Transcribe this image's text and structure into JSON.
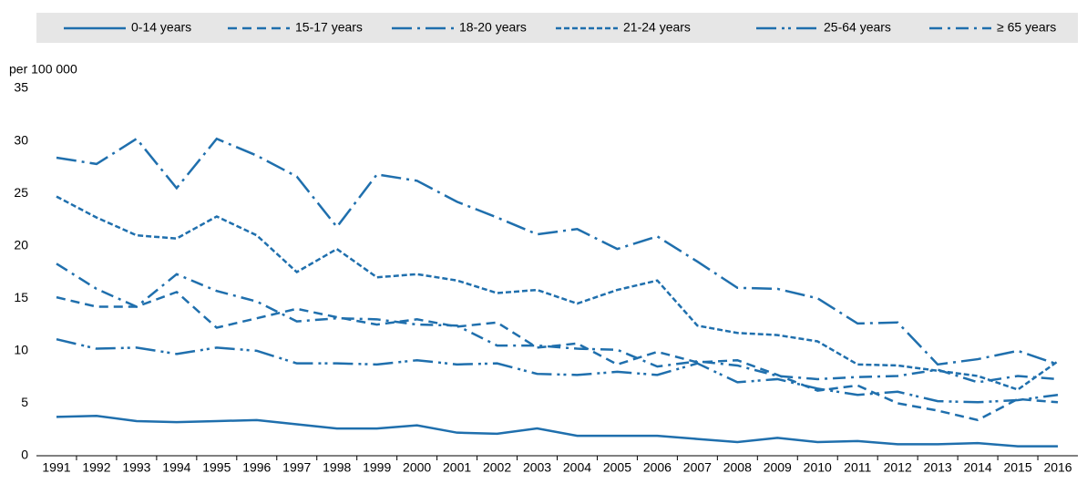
{
  "chart_data": {
    "type": "line",
    "y_label": "per 100 000",
    "categories": [
      "1991",
      "1992",
      "1993",
      "1994",
      "1995",
      "1996",
      "1997",
      "1998",
      "1999",
      "2000",
      "2001",
      "2002",
      "2003",
      "2004",
      "2005",
      "2006",
      "2007",
      "2008",
      "2009",
      "2010",
      "2011",
      "2012",
      "2013",
      "2014",
      "2015",
      "2016"
    ],
    "series": [
      {
        "name": "0-14 years",
        "color": "#1f6fad",
        "values": [
          3.7,
          3.8,
          3.3,
          3.2,
          3.3,
          3.4,
          3.0,
          2.6,
          2.6,
          2.9,
          2.2,
          2.1,
          2.6,
          1.9,
          1.9,
          1.9,
          1.6,
          1.3,
          1.7,
          1.3,
          1.4,
          1.1,
          1.1,
          1.2,
          0.9,
          0.9
        ]
      },
      {
        "name": "15-17 years",
        "color": "#1f6fad",
        "values": [
          15.1,
          14.2,
          14.2,
          15.6,
          12.2,
          13.1,
          14.0,
          13.2,
          12.5,
          13.0,
          12.3,
          12.7,
          10.3,
          10.7,
          8.7,
          9.9,
          8.9,
          9.1,
          7.7,
          6.2,
          6.7,
          5.0,
          4.3,
          3.4,
          5.4,
          5.1
        ]
      },
      {
        "name": "18-20 years",
        "color": "#1f6fad",
        "values": [
          28.4,
          27.8,
          30.2,
          25.5,
          30.2,
          28.6,
          26.6,
          21.8,
          26.8,
          26.2,
          24.2,
          22.7,
          21.1,
          21.6,
          19.7,
          20.9,
          18.5,
          16.0,
          15.9,
          15.0,
          12.6,
          12.7,
          8.7,
          9.2,
          10.0,
          8.7
        ]
      },
      {
        "name": "21-24 years",
        "color": "#1f6fad",
        "values": [
          24.7,
          22.7,
          21.0,
          20.7,
          22.8,
          21.0,
          17.5,
          19.7,
          17.0,
          17.3,
          16.7,
          15.5,
          15.8,
          14.5,
          15.8,
          16.7,
          12.4,
          11.7,
          11.5,
          10.9,
          8.7,
          8.6,
          8.1,
          7.6,
          6.3,
          9.0
        ]
      },
      {
        "name": "25-64 years",
        "color": "#1f6fad",
        "values": [
          11.1,
          10.2,
          10.3,
          9.7,
          10.3,
          10.0,
          8.8,
          8.8,
          8.7,
          9.1,
          8.7,
          8.8,
          7.8,
          7.7,
          8.0,
          7.7,
          8.8,
          7.0,
          7.3,
          6.4,
          5.8,
          6.1,
          5.2,
          5.1,
          5.3,
          5.8
        ]
      },
      {
        "name": "≥ 65 years",
        "color": "#1f6fad",
        "values": [
          18.3,
          15.9,
          14.2,
          17.3,
          15.7,
          14.7,
          12.8,
          13.1,
          13.0,
          12.5,
          12.4,
          10.5,
          10.5,
          10.2,
          10.1,
          8.5,
          9.0,
          8.6,
          7.6,
          7.3,
          7.5,
          7.6,
          8.2,
          7.0,
          7.6,
          7.3
        ]
      }
    ],
    "ylim": [
      0,
      35
    ],
    "yticks": [
      0,
      5,
      10,
      15,
      20,
      25,
      30,
      35
    ],
    "grid": false
  }
}
